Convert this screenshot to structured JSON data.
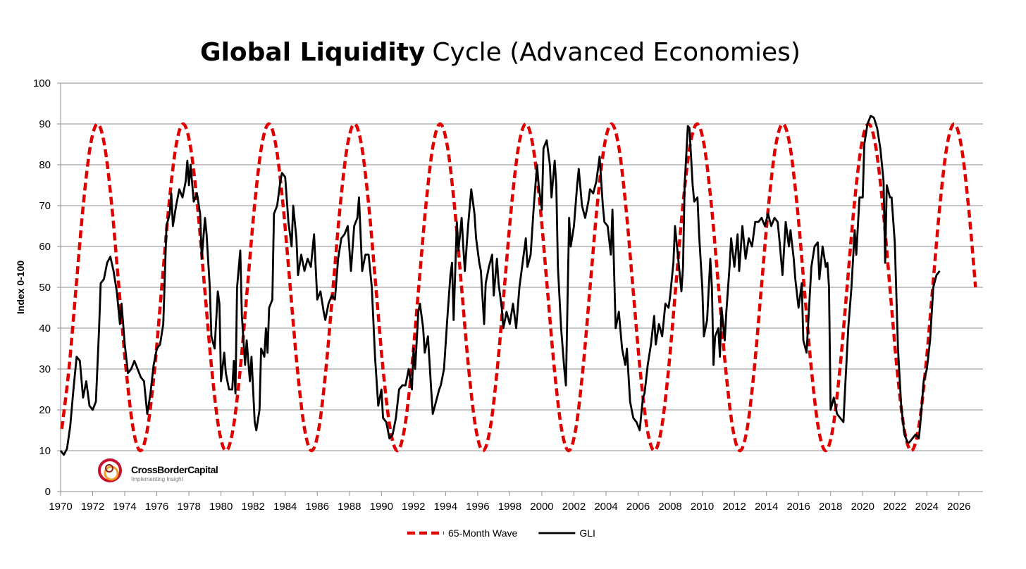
{
  "chart_data": {
    "type": "line",
    "title_parts": [
      {
        "text": "Global Liquidity",
        "bold": true
      },
      {
        "text": "Cycle (Advanced Economies)",
        "bold": false
      }
    ],
    "y_label": "Index 0-100",
    "logo": {
      "name": "CrossBorderCapital",
      "tagline": "Implementing Insight"
    },
    "xlim": [
      1970,
      2027.5
    ],
    "xticks": [
      1970,
      1972,
      1974,
      1976,
      1978,
      1980,
      1982,
      1984,
      1986,
      1988,
      1990,
      1992,
      1994,
      1996,
      1998,
      2000,
      2002,
      2004,
      2006,
      2008,
      2010,
      2012,
      2014,
      2016,
      2018,
      2020,
      2022,
      2024,
      2026
    ],
    "ylim": [
      0,
      100
    ],
    "yticks": [
      0,
      10,
      20,
      30,
      40,
      50,
      60,
      70,
      80,
      90,
      100
    ],
    "grid": true,
    "legend": "bottom",
    "series": [
      {
        "name": "65-Month Wave",
        "color": "#e00000",
        "dashed": true,
        "smooth": true,
        "x": [
          1970.075,
          1970.52,
          1970.965,
          1971.41,
          1971.855,
          1972.3,
          1972.745,
          1973.19,
          1973.635,
          1974.08,
          1974.525,
          1974.97,
          1975.415,
          1975.86,
          1976.305,
          1976.75,
          1977.195,
          1977.64,
          1978.085,
          1978.53,
          1978.975,
          1979.42,
          1979.865,
          1980.31,
          1980.755,
          1981.2,
          1981.645,
          1982.09,
          1982.535,
          1982.98,
          1983.425,
          1983.87,
          1984.315,
          1984.76,
          1985.205,
          1985.65,
          1986.095,
          1986.54,
          1986.985,
          1987.43,
          1987.875,
          1988.32,
          1988.765,
          1989.21,
          1989.655,
          1990.1,
          1990.545,
          1990.99,
          1991.435,
          1991.88,
          1992.325,
          1992.77,
          1993.215,
          1993.66,
          1994.105,
          1994.55,
          1994.995,
          1995.44,
          1995.885,
          1996.33,
          1996.775,
          1997.22,
          1997.665,
          1998.11,
          1998.555,
          1999,
          1999.445,
          1999.89,
          2000.335,
          2000.78,
          2001.225,
          2001.67,
          2002.115,
          2002.56,
          2003.005,
          2003.45,
          2003.895,
          2004.34,
          2004.785,
          2005.23,
          2005.675,
          2006.12,
          2006.565,
          2007.01,
          2007.455,
          2007.9,
          2008.345,
          2008.79,
          2009.235,
          2009.68,
          2010.125,
          2010.57,
          2011.015,
          2011.46,
          2011.905,
          2012.35,
          2012.795,
          2013.24,
          2013.685,
          2014.13,
          2014.575,
          2015.02,
          2015.465,
          2015.91,
          2016.355,
          2016.8,
          2017.245,
          2017.69,
          2018.135,
          2018.58,
          2019.025,
          2019.47,
          2019.915,
          2020.36,
          2020.805,
          2021.25,
          2021.695,
          2022.14,
          2022.585,
          2023.03,
          2023.475,
          2023.92,
          2024.365,
          2024.81,
          2025.255,
          2025.7,
          2026.145,
          2026.59,
          2027.035
        ],
        "values": [
          15.36,
          30,
          50,
          70,
          84.64,
          90,
          84.64,
          70,
          50,
          30,
          15.36,
          10,
          15.36,
          30,
          50,
          70,
          84.64,
          90,
          84.64,
          70,
          50,
          30,
          15.36,
          10,
          15.36,
          30,
          50,
          70,
          84.64,
          90,
          84.64,
          70,
          50,
          30,
          15.36,
          10,
          15.36,
          30,
          50,
          70,
          84.64,
          90,
          84.64,
          70,
          50,
          30,
          15.36,
          10,
          15.36,
          30,
          50,
          70,
          84.64,
          90,
          84.64,
          70,
          50,
          30,
          15.36,
          10,
          15.36,
          30,
          50,
          70,
          84.64,
          90,
          84.64,
          70,
          50,
          30,
          15.36,
          10,
          15.36,
          30,
          50,
          70,
          84.64,
          90,
          84.64,
          70,
          50,
          30,
          15.36,
          10,
          15.36,
          30,
          50,
          70,
          84.64,
          90,
          84.64,
          70,
          50,
          30,
          15.36,
          10,
          15.36,
          30,
          50,
          70,
          84.64,
          90,
          84.64,
          70,
          50,
          30,
          15.36,
          10,
          15.36,
          30,
          50,
          70,
          84.64,
          90,
          84.64,
          70,
          50,
          30,
          15.36,
          10,
          15.36,
          30,
          50,
          70,
          84.64,
          90,
          84.64,
          70,
          50
        ]
      },
      {
        "name": "GLI",
        "color": "#000000",
        "dashed": false,
        "smooth": false,
        "x": [
          1970.0,
          1970.2,
          1970.4,
          1970.6,
          1970.8,
          1971.0,
          1971.2,
          1971.4,
          1971.6,
          1971.8,
          1972.0,
          1972.2,
          1972.4,
          1972.5,
          1972.7,
          1972.9,
          1973.1,
          1973.3,
          1973.5,
          1973.7,
          1973.8,
          1974.0,
          1974.2,
          1974.4,
          1974.6,
          1974.8,
          1975.0,
          1975.2,
          1975.4,
          1975.6,
          1975.8,
          1976.0,
          1976.2,
          1976.4,
          1976.6,
          1976.8,
          1976.9,
          1977.0,
          1977.2,
          1977.4,
          1977.6,
          1977.8,
          1977.9,
          1978.0,
          1978.1,
          1978.3,
          1978.5,
          1978.7,
          1978.8,
          1979.0,
          1979.1,
          1979.3,
          1979.4,
          1979.6,
          1979.8,
          1979.9,
          1980.0,
          1980.2,
          1980.3,
          1980.5,
          1980.7,
          1980.8,
          1980.9,
          1981.0,
          1981.2,
          1981.3,
          1981.5,
          1981.6,
          1981.8,
          1981.9,
          1982.1,
          1982.2,
          1982.4,
          1982.5,
          1982.7,
          1982.8,
          1982.9,
          1983.0,
          1983.2,
          1983.3,
          1983.5,
          1983.7,
          1983.8,
          1984.0,
          1984.2,
          1984.4,
          1984.5,
          1984.7,
          1984.8,
          1985.0,
          1985.2,
          1985.4,
          1985.6,
          1985.8,
          1986.0,
          1986.2,
          1986.4,
          1986.5,
          1986.7,
          1986.9,
          1987.1,
          1987.3,
          1987.5,
          1987.7,
          1987.9,
          1988.1,
          1988.3,
          1988.5,
          1988.6,
          1988.8,
          1989.0,
          1989.2,
          1989.4,
          1989.6,
          1989.8,
          1990.0,
          1990.1,
          1990.3,
          1990.5,
          1990.7,
          1990.9,
          1991.1,
          1991.3,
          1991.5,
          1991.7,
          1991.9,
          1992.0,
          1992.1,
          1992.3,
          1992.4,
          1992.6,
          1992.7,
          1992.9,
          1993.1,
          1993.2,
          1993.4,
          1993.6,
          1993.7,
          1993.9,
          1994.1,
          1994.3,
          1994.4,
          1994.5,
          1994.7,
          1994.8,
          1995.0,
          1995.1,
          1995.2,
          1995.4,
          1995.6,
          1995.8,
          1995.9,
          1996.1,
          1996.2,
          1996.4,
          1996.5,
          1996.7,
          1996.9,
          1997.0,
          1997.2,
          1997.3,
          1997.5,
          1997.6,
          1997.8,
          1998.0,
          1998.2,
          1998.4,
          1998.6,
          1998.8,
          1999.0,
          1999.1,
          1999.3,
          1999.5,
          1999.7,
          1999.8,
          2000.0,
          2000.1,
          2000.3,
          2000.5,
          2000.6,
          2000.8,
          2000.9,
          2001.0,
          2001.2,
          2001.4,
          2001.5,
          2001.7,
          2001.8,
          2002.0,
          2002.2,
          2002.3,
          2002.5,
          2002.7,
          2002.9,
          2003.0,
          2003.2,
          2003.4,
          2003.6,
          2003.8,
          2003.9,
          2004.1,
          2004.3,
          2004.4,
          2004.6,
          2004.8,
          2005.0,
          2005.2,
          2005.3,
          2005.5,
          2005.7,
          2005.9,
          2006.1,
          2006.3,
          2006.4,
          2006.6,
          2006.8,
          2007.0,
          2007.1,
          2007.3,
          2007.5,
          2007.7,
          2007.9,
          2008.0,
          2008.2,
          2008.3,
          2008.5,
          2008.7,
          2008.8,
          2008.9,
          2009.1,
          2009.2,
          2009.4,
          2009.5,
          2009.7,
          2009.8,
          2010.0,
          2010.1,
          2010.3,
          2010.5,
          2010.6,
          2010.7,
          2010.8,
          2011.0,
          2011.1,
          2011.2,
          2011.4,
          2011.5,
          2011.7,
          2011.8,
          2012.0,
          2012.2,
          2012.3,
          2012.5,
          2012.7,
          2012.9,
          2013.1,
          2013.3,
          2013.5,
          2013.7,
          2013.9,
          2014.1,
          2014.3,
          2014.5,
          2014.7,
          2014.8,
          2015.0,
          2015.2,
          2015.4,
          2015.5,
          2015.7,
          2015.8,
          2016.0,
          2016.2,
          2016.3,
          2016.5,
          2016.7,
          2016.8,
          2017.0,
          2017.2,
          2017.3,
          2017.5,
          2017.7,
          2017.8,
          2017.9,
          2018.0,
          2018.2,
          2018.4,
          2018.6,
          2018.8,
          2018.9,
          2019.1,
          2019.3,
          2019.5,
          2019.6,
          2019.8,
          2020.0,
          2020.1,
          2020.3,
          2020.5,
          2020.7,
          2020.9,
          2021.1,
          2021.3,
          2021.4,
          2021.5,
          2021.7,
          2021.8,
          2022.0,
          2022.2,
          2022.4,
          2022.6,
          2022.8,
          2022.9,
          2023.1,
          2023.3,
          2023.5,
          2023.6,
          2023.8,
          2024.0,
          2024.2,
          2024.4,
          2024.6,
          2024.8
        ],
        "values": [
          10,
          9,
          10.5,
          16,
          25,
          33,
          32,
          23,
          27,
          21,
          20,
          22,
          40,
          51,
          52,
          56,
          57.5,
          54,
          49,
          41,
          46,
          36,
          29,
          30,
          32,
          30,
          28,
          27,
          19,
          24,
          31,
          35,
          36,
          41,
          65,
          68,
          73,
          65,
          70,
          74,
          72,
          76,
          81,
          75,
          80,
          71,
          73,
          68,
          57,
          67,
          63,
          50,
          38,
          35,
          49,
          46,
          27,
          34,
          29,
          25,
          25,
          32,
          24,
          50,
          59,
          43,
          31,
          37,
          27,
          33,
          17,
          15,
          20,
          35,
          33,
          40,
          34,
          45,
          47,
          68,
          70,
          76,
          78,
          77,
          66,
          60,
          70,
          62,
          53,
          58,
          54,
          57,
          55,
          63,
          47,
          49,
          44,
          42,
          46,
          48,
          47,
          57,
          62,
          63,
          65,
          54,
          65,
          67,
          72,
          54,
          58,
          58,
          50,
          33,
          21,
          25,
          18,
          17,
          13,
          14,
          18,
          25,
          26,
          26,
          30,
          25,
          35,
          30,
          44,
          46,
          40,
          34,
          38,
          25,
          19,
          22,
          25,
          26,
          30,
          42,
          53,
          56,
          42,
          66,
          59,
          67,
          60,
          54,
          65,
          74,
          68,
          62,
          56,
          54,
          41,
          51,
          55,
          58,
          48,
          57,
          51,
          45,
          40,
          44,
          41,
          46,
          40,
          50,
          56,
          62,
          55,
          58,
          70,
          80,
          75,
          69,
          84,
          86,
          80,
          72,
          81,
          75,
          55,
          40,
          30,
          26,
          67,
          60,
          65,
          75,
          79,
          70,
          67,
          71,
          74,
          73,
          76,
          82,
          70,
          66,
          65,
          58,
          69,
          40,
          44,
          35,
          31,
          35,
          22,
          18,
          17,
          15,
          23,
          24,
          31,
          36,
          43,
          36,
          41,
          38,
          46,
          45,
          48,
          56,
          65,
          57,
          49,
          55,
          75,
          89.5,
          89,
          75,
          71,
          72,
          63,
          50,
          38,
          42,
          57,
          50,
          31,
          38,
          40,
          33,
          45,
          37,
          44,
          55,
          62,
          55,
          63,
          54,
          65,
          57,
          62,
          60,
          66,
          66,
          67,
          65,
          68,
          65,
          67,
          66,
          62,
          53,
          66,
          60,
          64,
          57,
          52,
          45,
          51,
          37,
          34,
          48,
          55,
          60,
          61,
          52,
          60,
          55,
          56,
          50,
          20,
          23,
          19,
          18,
          17,
          25,
          40,
          50,
          64,
          58,
          72,
          72,
          85,
          90,
          92,
          91.5,
          89,
          84,
          76,
          56,
          75,
          72,
          72,
          61,
          35,
          21,
          14,
          12,
          12,
          13,
          14,
          13,
          17,
          27,
          30,
          37,
          50,
          53,
          54
        ]
      }
    ]
  }
}
